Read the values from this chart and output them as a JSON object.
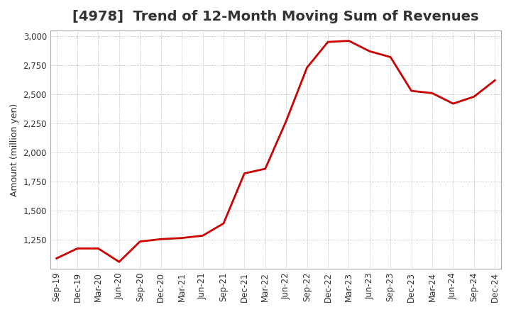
{
  "title": "[4978]  Trend of 12-Month Moving Sum of Revenues",
  "ylabel": "Amount (million yen)",
  "x_labels": [
    "Sep-19",
    "Dec-19",
    "Mar-20",
    "Jun-20",
    "Sep-20",
    "Dec-20",
    "Mar-21",
    "Jun-21",
    "Sep-21",
    "Dec-21",
    "Mar-22",
    "Jun-22",
    "Sep-22",
    "Dec-22",
    "Mar-23",
    "Jun-23",
    "Sep-23",
    "Dec-23",
    "Mar-24",
    "Jun-24",
    "Sep-24",
    "Dec-24"
  ],
  "values": [
    1090,
    1175,
    1175,
    1060,
    1235,
    1255,
    1265,
    1285,
    1390,
    1820,
    1860,
    2270,
    2730,
    2950,
    2960,
    2870,
    2820,
    2530,
    2510,
    2420,
    2480,
    2620
  ],
  "line_color": "#cc0000",
  "background_color": "#ffffff",
  "plot_bg_color": "#ffffff",
  "ylim": [
    1000,
    3050
  ],
  "yticks": [
    1250,
    1500,
    1750,
    2000,
    2250,
    2500,
    2750,
    3000
  ],
  "title_color": "#333333",
  "grid_color": "#aaaaaa",
  "title_fontsize": 14,
  "tick_color": "#333333",
  "label_fontsize": 9,
  "tick_fontsize": 8.5
}
